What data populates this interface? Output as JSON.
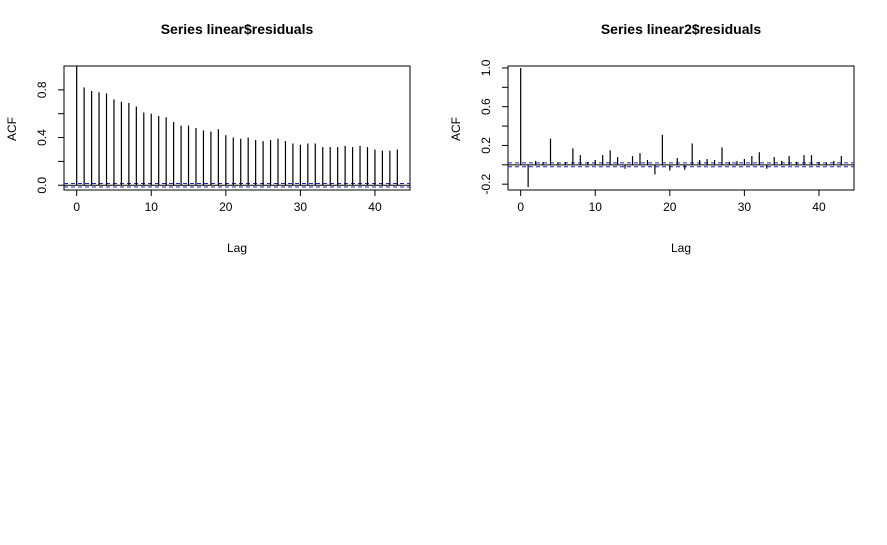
{
  "chart_data": [
    {
      "type": "bar",
      "title": "Series  linear$residuals",
      "xlabel": "Lag",
      "ylabel": "ACF",
      "xlim": [
        -1.7,
        44.7
      ],
      "ylim": [
        -0.04,
        1.0
      ],
      "xticks": [
        0,
        10,
        20,
        30,
        40
      ],
      "yticks": [
        0.0,
        0.4,
        0.8
      ],
      "ytick_labels": [
        "0.0",
        "0.4",
        "0.8"
      ],
      "yminor": [
        0.2,
        0.6
      ],
      "conf_limit": 0.015,
      "lags": [
        0,
        1,
        2,
        3,
        4,
        5,
        6,
        7,
        8,
        9,
        10,
        11,
        12,
        13,
        14,
        15,
        16,
        17,
        18,
        19,
        20,
        21,
        22,
        23,
        24,
        25,
        26,
        27,
        28,
        29,
        30,
        31,
        32,
        33,
        34,
        35,
        36,
        37,
        38,
        39,
        40,
        41,
        42,
        43
      ],
      "values": [
        1.0,
        0.82,
        0.79,
        0.78,
        0.77,
        0.72,
        0.7,
        0.69,
        0.66,
        0.61,
        0.6,
        0.58,
        0.57,
        0.53,
        0.5,
        0.5,
        0.48,
        0.46,
        0.45,
        0.47,
        0.42,
        0.4,
        0.39,
        0.4,
        0.38,
        0.37,
        0.38,
        0.39,
        0.37,
        0.35,
        0.34,
        0.35,
        0.35,
        0.32,
        0.32,
        0.32,
        0.33,
        0.32,
        0.33,
        0.32,
        0.3,
        0.29,
        0.29,
        0.3
      ],
      "bar_color": "#000000",
      "conf_color": "#1f1fd0"
    },
    {
      "type": "bar",
      "title": "Series  linear2$residuals",
      "xlabel": "Lag",
      "ylabel": "ACF",
      "xlim": [
        -1.7,
        44.7
      ],
      "ylim": [
        -0.26,
        1.02
      ],
      "xticks": [
        0,
        10,
        20,
        30,
        40
      ],
      "yticks": [
        -0.2,
        0.2,
        0.6,
        1.0
      ],
      "ytick_labels": [
        "-0.2",
        "0.2",
        "0.6",
        "1.0"
      ],
      "yminor": [
        0.0,
        0.4,
        0.8
      ],
      "conf_limit": 0.02,
      "lags": [
        0,
        1,
        2,
        3,
        4,
        5,
        6,
        7,
        8,
        9,
        10,
        11,
        12,
        13,
        14,
        15,
        16,
        17,
        18,
        19,
        20,
        21,
        22,
        23,
        24,
        25,
        26,
        27,
        28,
        29,
        30,
        31,
        32,
        33,
        34,
        35,
        36,
        37,
        38,
        39,
        40,
        41,
        42,
        43
      ],
      "values": [
        1.0,
        -0.23,
        0.04,
        0.03,
        0.27,
        0.02,
        0.03,
        0.17,
        0.1,
        0.03,
        0.05,
        0.1,
        0.15,
        0.08,
        -0.04,
        0.09,
        0.12,
        0.05,
        -0.1,
        0.31,
        -0.06,
        0.07,
        -0.05,
        0.22,
        0.05,
        0.06,
        0.05,
        0.18,
        0.03,
        0.04,
        0.06,
        0.09,
        0.13,
        -0.04,
        0.08,
        0.04,
        0.09,
        0.03,
        0.1,
        0.1,
        0.03,
        0.02,
        0.04,
        0.09
      ],
      "bar_color": "#000000",
      "conf_color": "#1f1fd0"
    }
  ]
}
